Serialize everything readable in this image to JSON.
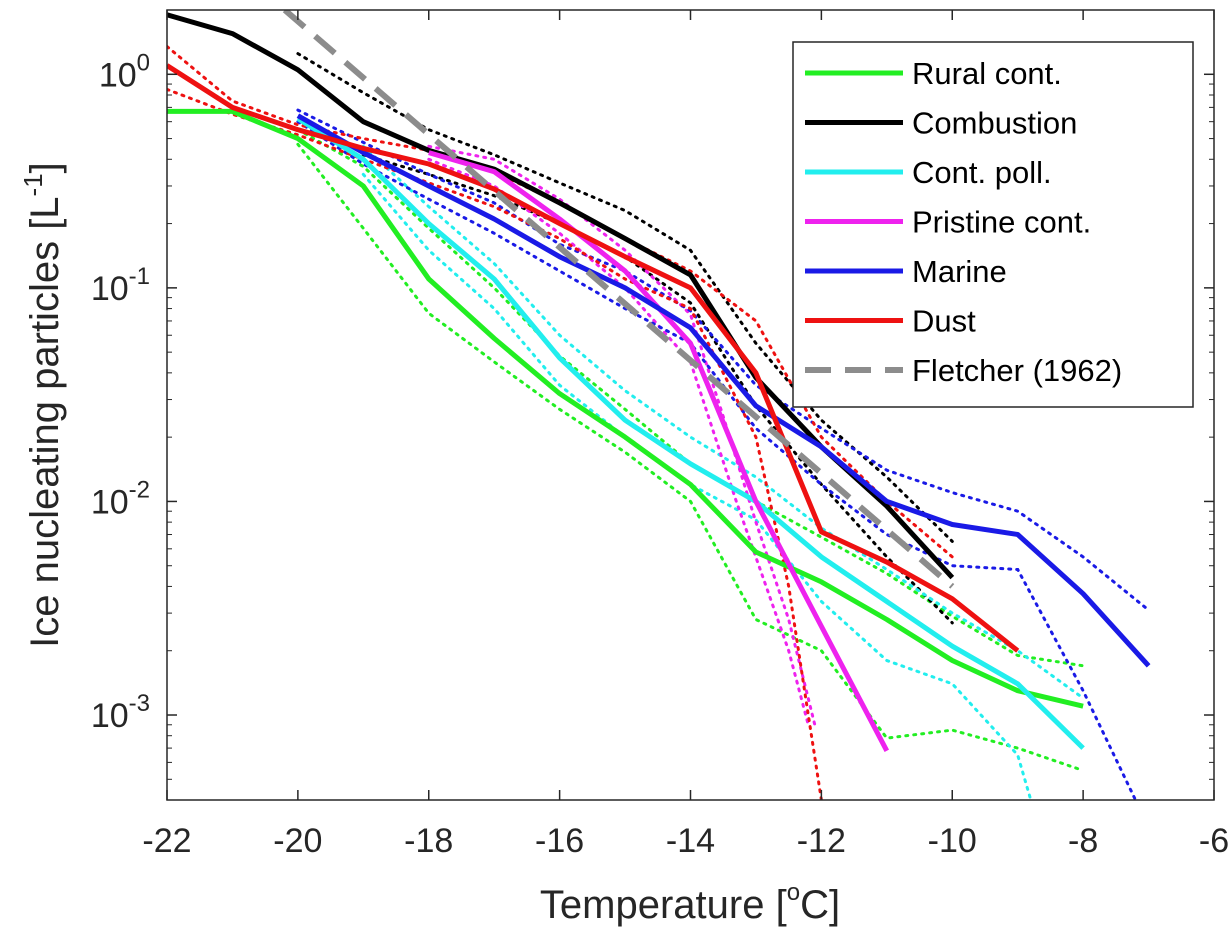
{
  "chart_data": {
    "type": "line",
    "xlabel_main": "Temperature [",
    "xlabel_sup": "o",
    "xlabel_end": "C]",
    "ylabel_main": "Ice nucleating particles [L",
    "ylabel_sup": "-1",
    "ylabel_end": "]",
    "xlim": [
      -22,
      -6
    ],
    "ylim": [
      0.0004,
      2.0
    ],
    "yscale": "log",
    "grid": false,
    "legend_position": "top-right",
    "x_ticks": [
      {
        "value": -22,
        "label": "-22"
      },
      {
        "value": -20,
        "label": "-20"
      },
      {
        "value": -18,
        "label": "-18"
      },
      {
        "value": -16,
        "label": "-16"
      },
      {
        "value": -14,
        "label": "-14"
      },
      {
        "value": -12,
        "label": "-12"
      },
      {
        "value": -10,
        "label": "-10"
      },
      {
        "value": -8,
        "label": "-8"
      },
      {
        "value": -6,
        "label": "-6"
      }
    ],
    "y_ticks": [
      {
        "value": 0.001,
        "base": "10",
        "exp": "-3"
      },
      {
        "value": 0.01,
        "base": "10",
        "exp": "-2"
      },
      {
        "value": 0.1,
        "base": "10",
        "exp": "-1"
      },
      {
        "value": 1,
        "base": "10",
        "exp": "0"
      }
    ],
    "series": [
      {
        "name": "Rural cont.",
        "color": "#22ee22",
        "dash": "solid",
        "points": [
          [
            -22,
            0.67
          ],
          [
            -21,
            0.67
          ],
          [
            -20,
            0.5
          ],
          [
            -19,
            0.3
          ],
          [
            -18,
            0.11
          ],
          [
            -17,
            0.058
          ],
          [
            -16,
            0.032
          ],
          [
            -15,
            0.02
          ],
          [
            -14,
            0.012
          ],
          [
            -13,
            0.0058
          ],
          [
            -12,
            0.0042
          ],
          [
            -11,
            0.0028
          ],
          [
            -10,
            0.0018
          ],
          [
            -9,
            0.0013
          ],
          [
            -8,
            0.0011
          ]
        ],
        "lower": [
          [
            -20,
            0.47
          ],
          [
            -19,
            0.19
          ],
          [
            -18,
            0.076
          ],
          [
            -17,
            0.045
          ],
          [
            -16,
            0.027
          ],
          [
            -15,
            0.017
          ],
          [
            -14,
            0.01
          ],
          [
            -13,
            0.0028
          ],
          [
            -12,
            0.002
          ],
          [
            -11,
            0.00078
          ],
          [
            -10,
            0.00085
          ],
          [
            -9,
            0.0007
          ],
          [
            -8,
            0.00055
          ]
        ],
        "upper": [
          [
            -20,
            0.55
          ],
          [
            -19,
            0.37
          ],
          [
            -18,
            0.19
          ],
          [
            -17,
            0.1
          ],
          [
            -16,
            0.048
          ],
          [
            -15,
            0.027
          ],
          [
            -14,
            0.015
          ],
          [
            -13,
            0.01
          ],
          [
            -12,
            0.0068
          ],
          [
            -11,
            0.0046
          ],
          [
            -10,
            0.0029
          ],
          [
            -9,
            0.0019
          ],
          [
            -8,
            0.0017
          ]
        ]
      },
      {
        "name": "Combustion",
        "color": "#000000",
        "dash": "solid",
        "points": [
          [
            -22,
            1.9
          ],
          [
            -21,
            1.55
          ],
          [
            -20,
            1.05
          ],
          [
            -19,
            0.6
          ],
          [
            -18,
            0.44
          ],
          [
            -17,
            0.36
          ],
          [
            -16,
            0.25
          ],
          [
            -15,
            0.17
          ],
          [
            -14,
            0.115
          ],
          [
            -13,
            0.038
          ],
          [
            -12,
            0.018
          ],
          [
            -11,
            0.0095
          ],
          [
            -10,
            0.0044
          ]
        ],
        "lower": [
          [
            -19,
            0.42
          ],
          [
            -18,
            0.34
          ],
          [
            -17,
            0.27
          ],
          [
            -16,
            0.2
          ],
          [
            -15,
            0.14
          ],
          [
            -14,
            0.085
          ],
          [
            -13,
            0.028
          ],
          [
            -12,
            0.012
          ],
          [
            -11,
            0.0055
          ],
          [
            -10,
            0.0027
          ]
        ],
        "upper": [
          [
            -20,
            1.25
          ],
          [
            -19,
            0.82
          ],
          [
            -18,
            0.55
          ],
          [
            -17,
            0.42
          ],
          [
            -16,
            0.31
          ],
          [
            -15,
            0.23
          ],
          [
            -14,
            0.15
          ],
          [
            -13,
            0.055
          ],
          [
            -12,
            0.024
          ],
          [
            -11,
            0.013
          ],
          [
            -10,
            0.0065
          ]
        ]
      },
      {
        "name": "Cont. poll.",
        "color": "#22eeee",
        "dash": "solid",
        "points": [
          [
            -20,
            0.62
          ],
          [
            -19,
            0.4
          ],
          [
            -18,
            0.2
          ],
          [
            -17,
            0.11
          ],
          [
            -16,
            0.047
          ],
          [
            -15,
            0.024
          ],
          [
            -14,
            0.015
          ],
          [
            -13,
            0.01
          ],
          [
            -12,
            0.0055
          ],
          [
            -11,
            0.0034
          ],
          [
            -10,
            0.0021
          ],
          [
            -9,
            0.0014
          ],
          [
            -8,
            0.0007
          ]
        ],
        "lower": [
          [
            -19,
            0.34
          ],
          [
            -18,
            0.15
          ],
          [
            -17,
            0.08
          ],
          [
            -16,
            0.035
          ],
          [
            -15,
            0.02
          ],
          [
            -14,
            0.012
          ],
          [
            -13,
            0.0082
          ],
          [
            -12,
            0.0034
          ],
          [
            -11,
            0.0018
          ],
          [
            -10,
            0.0014
          ],
          [
            -9,
            0.00065
          ],
          [
            -8.8,
            0.0004
          ]
        ],
        "upper": [
          [
            -19,
            0.46
          ],
          [
            -18,
            0.24
          ],
          [
            -17,
            0.13
          ],
          [
            -16,
            0.06
          ],
          [
            -15,
            0.033
          ],
          [
            -14,
            0.02
          ],
          [
            -13,
            0.013
          ],
          [
            -12,
            0.0075
          ],
          [
            -11,
            0.0048
          ],
          [
            -10,
            0.003
          ],
          [
            -9,
            0.002
          ],
          [
            -8,
            0.0012
          ]
        ]
      },
      {
        "name": "Pristine cont.",
        "color": "#ee22ee",
        "dash": "solid",
        "points": [
          [
            -18,
            0.43
          ],
          [
            -17,
            0.35
          ],
          [
            -16,
            0.21
          ],
          [
            -15,
            0.12
          ],
          [
            -14,
            0.055
          ],
          [
            -13,
            0.01
          ],
          [
            -12,
            0.0026
          ],
          [
            -11,
            0.00068
          ]
        ],
        "lower": [
          [
            -18,
            0.4
          ],
          [
            -17,
            0.3
          ],
          [
            -16,
            0.18
          ],
          [
            -15,
            0.1
          ],
          [
            -14,
            0.045
          ],
          [
            -13.3,
            0.01
          ],
          [
            -12.5,
            0.002
          ],
          [
            -12.2,
            0.0009
          ]
        ],
        "upper": [
          [
            -18,
            0.46
          ],
          [
            -17,
            0.4
          ],
          [
            -16,
            0.26
          ],
          [
            -15,
            0.15
          ],
          [
            -14,
            0.075
          ],
          [
            -13.5,
            0.025
          ],
          [
            -13,
            0.008
          ],
          [
            -12.5,
            0.0028
          ],
          [
            -12.1,
            0.0009
          ]
        ]
      },
      {
        "name": "Marine",
        "color": "#1a1ae6",
        "dash": "solid",
        "points": [
          [
            -20,
            0.64
          ],
          [
            -19,
            0.43
          ],
          [
            -18,
            0.3
          ],
          [
            -17,
            0.21
          ],
          [
            -16,
            0.14
          ],
          [
            -15,
            0.1
          ],
          [
            -14,
            0.065
          ],
          [
            -13,
            0.028
          ],
          [
            -12,
            0.018
          ],
          [
            -11,
            0.01
          ],
          [
            -10,
            0.0078
          ],
          [
            -9,
            0.007
          ],
          [
            -8,
            0.0037
          ],
          [
            -7,
            0.0017
          ]
        ],
        "lower": [
          [
            -20,
            0.6
          ],
          [
            -19,
            0.38
          ],
          [
            -18,
            0.26
          ],
          [
            -17,
            0.18
          ],
          [
            -16,
            0.12
          ],
          [
            -15,
            0.08
          ],
          [
            -14,
            0.055
          ],
          [
            -13,
            0.022
          ],
          [
            -12,
            0.012
          ],
          [
            -11,
            0.007
          ],
          [
            -10,
            0.005
          ],
          [
            -9,
            0.0048
          ],
          [
            -8,
            0.0013
          ],
          [
            -7.2,
            0.0004
          ]
        ],
        "upper": [
          [
            -20,
            0.68
          ],
          [
            -19,
            0.48
          ],
          [
            -18,
            0.34
          ],
          [
            -17,
            0.25
          ],
          [
            -16,
            0.16
          ],
          [
            -15,
            0.12
          ],
          [
            -14,
            0.078
          ],
          [
            -13,
            0.035
          ],
          [
            -12,
            0.022
          ],
          [
            -11,
            0.014
          ],
          [
            -10,
            0.011
          ],
          [
            -9,
            0.009
          ],
          [
            -8,
            0.0055
          ],
          [
            -7,
            0.0031
          ]
        ]
      },
      {
        "name": "Dust",
        "color": "#ee1111",
        "dash": "solid",
        "points": [
          [
            -22,
            1.1
          ],
          [
            -21,
            0.7
          ],
          [
            -20,
            0.55
          ],
          [
            -19,
            0.45
          ],
          [
            -18,
            0.38
          ],
          [
            -17,
            0.29
          ],
          [
            -16,
            0.2
          ],
          [
            -15,
            0.14
          ],
          [
            -14,
            0.1
          ],
          [
            -13,
            0.04
          ],
          [
            -12,
            0.0072
          ],
          [
            -11,
            0.0052
          ],
          [
            -10,
            0.0035
          ],
          [
            -9,
            0.002
          ]
        ],
        "lower": [
          [
            -22,
            0.85
          ],
          [
            -21,
            0.65
          ],
          [
            -20,
            0.52
          ],
          [
            -19,
            0.4
          ],
          [
            -18,
            0.31
          ],
          [
            -17,
            0.24
          ],
          [
            -16,
            0.17
          ],
          [
            -15,
            0.11
          ],
          [
            -14,
            0.08
          ],
          [
            -13,
            0.02
          ],
          [
            -12.5,
            0.004
          ],
          [
            -12.2,
            0.001
          ],
          [
            -12,
            0.0004
          ]
        ],
        "upper": [
          [
            -22,
            1.35
          ],
          [
            -21,
            0.75
          ],
          [
            -20,
            0.58
          ],
          [
            -19,
            0.5
          ],
          [
            -18,
            0.44
          ],
          [
            -17,
            0.35
          ],
          [
            -16,
            0.25
          ],
          [
            -15,
            0.17
          ],
          [
            -14,
            0.12
          ],
          [
            -13,
            0.07
          ],
          [
            -12,
            0.02
          ],
          [
            -11,
            0.01
          ],
          [
            -10,
            0.0055
          ]
        ]
      },
      {
        "name": "Fletcher (1962)",
        "color": "#8c8c8c",
        "dash": "dashed",
        "points": [
          [
            -20.2,
            2.0
          ],
          [
            -10,
            0.004
          ]
        ]
      }
    ]
  }
}
